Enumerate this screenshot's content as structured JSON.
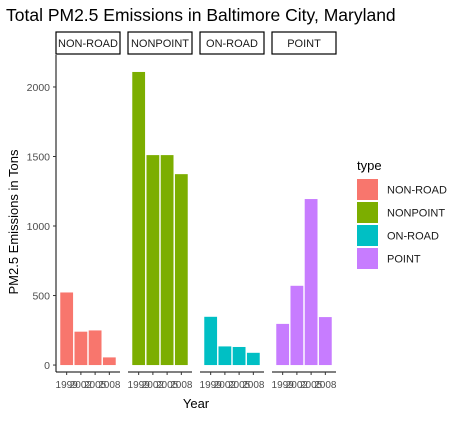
{
  "chart_data": {
    "type": "bar",
    "title": "Total PM2.5 Emissions in Baltimore City, Maryland",
    "xlabel": "Year",
    "ylabel": "PM2.5 Emissions in Tons",
    "x": [
      "1999",
      "2002",
      "2005",
      "2008"
    ],
    "x_tick_labels": [
      "1999",
      "2002",
      "2005",
      "2008"
    ],
    "y_ticks": [
      0,
      500,
      1000,
      1500,
      2000
    ],
    "ylim": [
      -50,
      2230
    ],
    "grid": false,
    "legend_position": "right",
    "legend_title": "type",
    "facets": [
      {
        "name": "NON-ROAD",
        "color": "#F8766D",
        "values": [
          522,
          240,
          249,
          55
        ]
      },
      {
        "name": "NONPOINT",
        "color": "#7CAE00",
        "values": [
          2108,
          1510,
          1510,
          1373
        ]
      },
      {
        "name": "ON-ROAD",
        "color": "#00BFC4",
        "values": [
          347,
          134,
          130,
          88
        ]
      },
      {
        "name": "POINT",
        "color": "#C77CFF",
        "values": [
          296,
          570,
          1194,
          345
        ]
      }
    ]
  }
}
